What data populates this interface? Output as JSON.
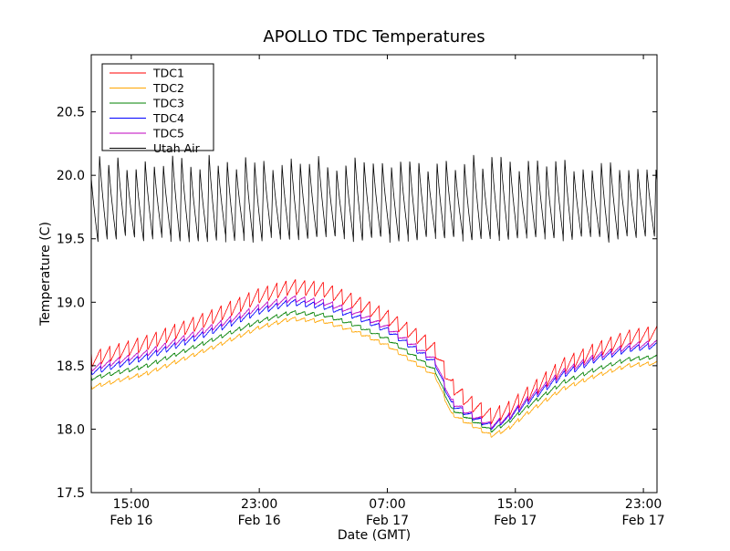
{
  "chart_data": {
    "type": "line",
    "title": "APOLLO TDC Temperatures",
    "xlabel": "Date (GMT)",
    "ylabel": "Temperature (C)",
    "x_unit": "hours since Feb 16 00:00 GMT",
    "xlim": [
      12.5,
      47.85
    ],
    "ylim": [
      17.5,
      20.95
    ],
    "grid": false,
    "legend_position": "top-left",
    "x_ticks": [
      {
        "value": 15,
        "label_time": "15:00",
        "label_date": "Feb 16"
      },
      {
        "value": 23,
        "label_time": "23:00",
        "label_date": "Feb 16"
      },
      {
        "value": 31,
        "label_time": "07:00",
        "label_date": "Feb 17"
      },
      {
        "value": 39,
        "label_time": "15:00",
        "label_date": "Feb 17"
      },
      {
        "value": 47,
        "label_time": "23:00",
        "label_date": "Feb 17"
      }
    ],
    "y_ticks": [
      {
        "value": 17.5,
        "label": "17.5"
      },
      {
        "value": 18.0,
        "label": "18.0"
      },
      {
        "value": 18.5,
        "label": "18.5"
      },
      {
        "value": 19.0,
        "label": "19.0"
      },
      {
        "value": 19.5,
        "label": "19.5"
      },
      {
        "value": 20.0,
        "label": "20.0"
      },
      {
        "value": 20.5,
        "label": "20.5"
      }
    ],
    "cycle_period_hours": 0.58,
    "series": [
      {
        "name": "TDC1",
        "color": "#ff0000",
        "sawtooth_amplitude": 0.12,
        "baseline": [
          [
            12.5,
            18.55
          ],
          [
            16,
            18.68
          ],
          [
            20,
            18.88
          ],
          [
            23,
            19.05
          ],
          [
            25,
            19.12
          ],
          [
            27,
            19.1
          ],
          [
            29,
            19.0
          ],
          [
            31,
            18.88
          ],
          [
            33,
            18.72
          ],
          [
            34,
            18.62
          ],
          [
            35,
            18.35
          ],
          [
            36,
            18.22
          ],
          [
            37.5,
            18.1
          ],
          [
            38.5,
            18.15
          ],
          [
            40,
            18.3
          ],
          [
            42,
            18.5
          ],
          [
            44,
            18.62
          ],
          [
            46,
            18.72
          ],
          [
            47.85,
            18.76
          ]
        ]
      },
      {
        "name": "TDC2",
        "color": "#ffa500",
        "sawtooth_amplitude": 0.03,
        "baseline": [
          [
            12.5,
            18.33
          ],
          [
            16,
            18.44
          ],
          [
            20,
            18.64
          ],
          [
            23,
            18.8
          ],
          [
            25,
            18.87
          ],
          [
            27,
            18.85
          ],
          [
            29,
            18.77
          ],
          [
            31,
            18.66
          ],
          [
            33,
            18.5
          ],
          [
            34,
            18.42
          ],
          [
            35,
            18.12
          ],
          [
            36,
            18.05
          ],
          [
            37.5,
            17.95
          ],
          [
            38.5,
            18.0
          ],
          [
            40,
            18.15
          ],
          [
            42,
            18.32
          ],
          [
            44,
            18.42
          ],
          [
            46,
            18.5
          ],
          [
            47.85,
            18.52
          ]
        ]
      },
      {
        "name": "TDC3",
        "color": "#008000",
        "sawtooth_amplitude": 0.03,
        "baseline": [
          [
            12.5,
            18.4
          ],
          [
            16,
            18.5
          ],
          [
            20,
            18.7
          ],
          [
            23,
            18.85
          ],
          [
            25,
            18.92
          ],
          [
            27,
            18.9
          ],
          [
            29,
            18.82
          ],
          [
            31,
            18.71
          ],
          [
            33,
            18.55
          ],
          [
            34,
            18.46
          ],
          [
            35,
            18.16
          ],
          [
            36,
            18.09
          ],
          [
            37.5,
            17.99
          ],
          [
            38.5,
            18.05
          ],
          [
            40,
            18.2
          ],
          [
            42,
            18.37
          ],
          [
            44,
            18.47
          ],
          [
            46,
            18.55
          ],
          [
            47.85,
            18.57
          ]
        ]
      },
      {
        "name": "TDC4",
        "color": "#0000ff",
        "sawtooth_amplitude": 0.05,
        "baseline": [
          [
            12.5,
            18.45
          ],
          [
            16,
            18.57
          ],
          [
            20,
            18.77
          ],
          [
            23,
            18.93
          ],
          [
            25,
            19.0
          ],
          [
            27,
            18.97
          ],
          [
            29,
            18.89
          ],
          [
            31,
            18.78
          ],
          [
            33,
            18.61
          ],
          [
            34,
            18.52
          ],
          [
            35,
            18.2
          ],
          [
            36,
            18.12
          ],
          [
            37.5,
            18.02
          ],
          [
            38.5,
            18.08
          ],
          [
            40,
            18.24
          ],
          [
            42,
            18.43
          ],
          [
            44,
            18.55
          ],
          [
            46,
            18.63
          ],
          [
            47.85,
            18.66
          ]
        ]
      },
      {
        "name": "TDC5",
        "color": "#bf00bf",
        "sawtooth_amplitude": 0.05,
        "baseline": [
          [
            12.5,
            18.48
          ],
          [
            16,
            18.6
          ],
          [
            20,
            18.8
          ],
          [
            23,
            18.96
          ],
          [
            25,
            19.03
          ],
          [
            27,
            19.0
          ],
          [
            29,
            18.92
          ],
          [
            31,
            18.8
          ],
          [
            33,
            18.63
          ],
          [
            34,
            18.54
          ],
          [
            35,
            18.22
          ],
          [
            36,
            18.13
          ],
          [
            37.5,
            18.03
          ],
          [
            38.5,
            18.09
          ],
          [
            40,
            18.26
          ],
          [
            42,
            18.45
          ],
          [
            44,
            18.57
          ],
          [
            46,
            18.65
          ],
          [
            47.85,
            18.68
          ]
        ]
      },
      {
        "name": "Utah Air",
        "color": "#000000",
        "oscillation_min": 19.5,
        "oscillation_max": 20.1,
        "note": "sawtooth oscillation between ~19.47 and ~20.2 C with ~35 min period"
      }
    ]
  }
}
